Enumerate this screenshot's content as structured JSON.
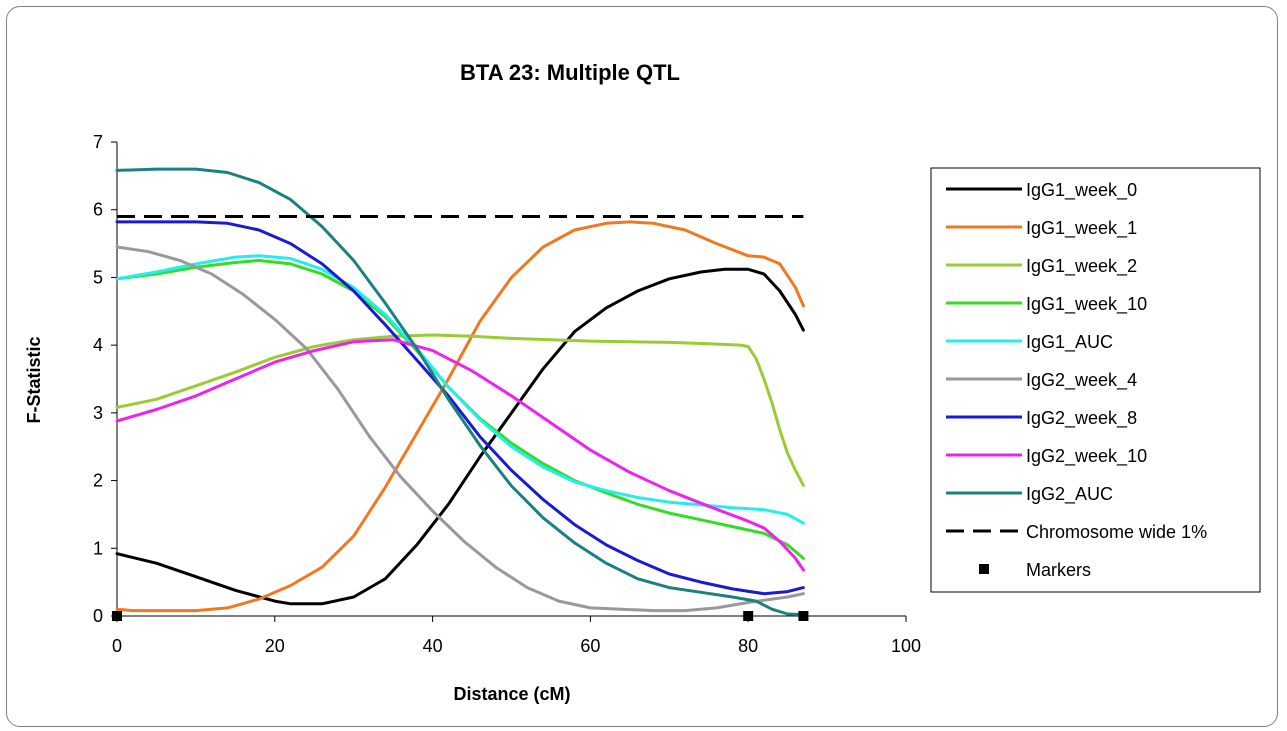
{
  "chart_data": {
    "type": "line",
    "title": "BTA 23: Multiple QTL",
    "xlabel": "Distance (cM)",
    "ylabel": "F-Statistic",
    "xlim": [
      0,
      100
    ],
    "ylim": [
      0,
      7
    ],
    "x_ticks": [
      "0",
      "20",
      "40",
      "60",
      "80",
      "100"
    ],
    "y_ticks": [
      "0",
      "1",
      "2",
      "3",
      "4",
      "5",
      "6",
      "7"
    ],
    "legend_position": "right",
    "series": [
      {
        "name": "IgG1_week_0",
        "color": "#000000",
        "points": [
          [
            0,
            0.92
          ],
          [
            5,
            0.78
          ],
          [
            10,
            0.58
          ],
          [
            15,
            0.38
          ],
          [
            20,
            0.22
          ],
          [
            22,
            0.18
          ],
          [
            26,
            0.18
          ],
          [
            30,
            0.28
          ],
          [
            34,
            0.55
          ],
          [
            38,
            1.05
          ],
          [
            42,
            1.65
          ],
          [
            46,
            2.35
          ],
          [
            50,
            3.0
          ],
          [
            54,
            3.65
          ],
          [
            58,
            4.2
          ],
          [
            62,
            4.55
          ],
          [
            66,
            4.8
          ],
          [
            70,
            4.98
          ],
          [
            74,
            5.08
          ],
          [
            77,
            5.12
          ],
          [
            80,
            5.12
          ],
          [
            82,
            5.05
          ],
          [
            84,
            4.8
          ],
          [
            86,
            4.45
          ],
          [
            87,
            4.22
          ]
        ]
      },
      {
        "name": "IgG1_week_1",
        "color": "#f07820",
        "points": [
          [
            0,
            0.1
          ],
          [
            2,
            0.08
          ],
          [
            10,
            0.08
          ],
          [
            14,
            0.12
          ],
          [
            18,
            0.25
          ],
          [
            22,
            0.45
          ],
          [
            26,
            0.72
          ],
          [
            30,
            1.18
          ],
          [
            34,
            1.9
          ],
          [
            38,
            2.7
          ],
          [
            42,
            3.5
          ],
          [
            46,
            4.35
          ],
          [
            50,
            5.0
          ],
          [
            54,
            5.45
          ],
          [
            58,
            5.7
          ],
          [
            62,
            5.8
          ],
          [
            65,
            5.82
          ],
          [
            68,
            5.8
          ],
          [
            72,
            5.7
          ],
          [
            76,
            5.5
          ],
          [
            80,
            5.32
          ],
          [
            82,
            5.3
          ],
          [
            84,
            5.2
          ],
          [
            86,
            4.85
          ],
          [
            87,
            4.58
          ]
        ]
      },
      {
        "name": "IgG1_week_2",
        "color": "#99cc33",
        "points": [
          [
            0,
            3.08
          ],
          [
            5,
            3.2
          ],
          [
            10,
            3.4
          ],
          [
            15,
            3.6
          ],
          [
            20,
            3.82
          ],
          [
            25,
            3.98
          ],
          [
            30,
            4.08
          ],
          [
            35,
            4.13
          ],
          [
            40,
            4.15
          ],
          [
            45,
            4.13
          ],
          [
            50,
            4.1
          ],
          [
            55,
            4.08
          ],
          [
            60,
            4.06
          ],
          [
            65,
            4.05
          ],
          [
            70,
            4.04
          ],
          [
            75,
            4.02
          ],
          [
            79,
            4.0
          ],
          [
            80,
            3.98
          ],
          [
            81,
            3.8
          ],
          [
            82,
            3.5
          ],
          [
            83,
            3.15
          ],
          [
            84,
            2.75
          ],
          [
            85,
            2.4
          ],
          [
            86,
            2.15
          ],
          [
            87,
            1.93
          ]
        ]
      },
      {
        "name": "IgG1_week_10",
        "color": "#33dd22",
        "points": [
          [
            0,
            4.98
          ],
          [
            5,
            5.05
          ],
          [
            10,
            5.15
          ],
          [
            15,
            5.22
          ],
          [
            18,
            5.25
          ],
          [
            22,
            5.2
          ],
          [
            26,
            5.05
          ],
          [
            30,
            4.8
          ],
          [
            34,
            4.42
          ],
          [
            38,
            3.92
          ],
          [
            42,
            3.38
          ],
          [
            46,
            2.92
          ],
          [
            50,
            2.55
          ],
          [
            54,
            2.25
          ],
          [
            58,
            2.0
          ],
          [
            62,
            1.82
          ],
          [
            66,
            1.65
          ],
          [
            70,
            1.52
          ],
          [
            74,
            1.42
          ],
          [
            78,
            1.32
          ],
          [
            82,
            1.22
          ],
          [
            85,
            1.05
          ],
          [
            87,
            0.85
          ]
        ]
      },
      {
        "name": "IgG1_AUC",
        "color": "#22eeee",
        "points": [
          [
            0,
            4.98
          ],
          [
            5,
            5.08
          ],
          [
            10,
            5.2
          ],
          [
            15,
            5.3
          ],
          [
            18,
            5.32
          ],
          [
            22,
            5.28
          ],
          [
            26,
            5.12
          ],
          [
            30,
            4.85
          ],
          [
            34,
            4.45
          ],
          [
            38,
            3.95
          ],
          [
            42,
            3.38
          ],
          [
            46,
            2.9
          ],
          [
            50,
            2.5
          ],
          [
            54,
            2.2
          ],
          [
            58,
            1.98
          ],
          [
            62,
            1.85
          ],
          [
            66,
            1.75
          ],
          [
            70,
            1.68
          ],
          [
            74,
            1.64
          ],
          [
            78,
            1.6
          ],
          [
            82,
            1.57
          ],
          [
            85,
            1.5
          ],
          [
            87,
            1.37
          ]
        ]
      },
      {
        "name": "IgG2_week_4",
        "color": "#999999",
        "points": [
          [
            0,
            5.45
          ],
          [
            4,
            5.38
          ],
          [
            8,
            5.25
          ],
          [
            12,
            5.05
          ],
          [
            16,
            4.75
          ],
          [
            20,
            4.38
          ],
          [
            24,
            3.95
          ],
          [
            28,
            3.35
          ],
          [
            32,
            2.65
          ],
          [
            36,
            2.05
          ],
          [
            40,
            1.55
          ],
          [
            44,
            1.1
          ],
          [
            48,
            0.72
          ],
          [
            52,
            0.42
          ],
          [
            56,
            0.22
          ],
          [
            60,
            0.12
          ],
          [
            64,
            0.1
          ],
          [
            68,
            0.08
          ],
          [
            72,
            0.08
          ],
          [
            76,
            0.12
          ],
          [
            80,
            0.2
          ],
          [
            83,
            0.25
          ],
          [
            85,
            0.28
          ],
          [
            87,
            0.33
          ]
        ]
      },
      {
        "name": "IgG2_week_8",
        "color": "#1a1ad6",
        "points": [
          [
            0,
            5.82
          ],
          [
            10,
            5.82
          ],
          [
            14,
            5.8
          ],
          [
            18,
            5.7
          ],
          [
            22,
            5.5
          ],
          [
            26,
            5.2
          ],
          [
            30,
            4.8
          ],
          [
            34,
            4.3
          ],
          [
            38,
            3.78
          ],
          [
            42,
            3.25
          ],
          [
            46,
            2.65
          ],
          [
            50,
            2.15
          ],
          [
            54,
            1.72
          ],
          [
            58,
            1.35
          ],
          [
            62,
            1.05
          ],
          [
            66,
            0.82
          ],
          [
            70,
            0.62
          ],
          [
            74,
            0.5
          ],
          [
            78,
            0.4
          ],
          [
            82,
            0.33
          ],
          [
            85,
            0.36
          ],
          [
            87,
            0.42
          ]
        ]
      },
      {
        "name": "IgG2_week_10",
        "color": "#ee22ee",
        "points": [
          [
            0,
            2.88
          ],
          [
            5,
            3.05
          ],
          [
            10,
            3.25
          ],
          [
            15,
            3.5
          ],
          [
            20,
            3.75
          ],
          [
            25,
            3.92
          ],
          [
            30,
            4.05
          ],
          [
            35,
            4.08
          ],
          [
            40,
            3.92
          ],
          [
            45,
            3.62
          ],
          [
            50,
            3.25
          ],
          [
            55,
            2.85
          ],
          [
            60,
            2.45
          ],
          [
            65,
            2.12
          ],
          [
            70,
            1.85
          ],
          [
            75,
            1.62
          ],
          [
            80,
            1.4
          ],
          [
            82,
            1.3
          ],
          [
            84,
            1.1
          ],
          [
            86,
            0.85
          ],
          [
            87,
            0.68
          ]
        ]
      },
      {
        "name": "IgG2_AUC",
        "color": "#1a8080",
        "points": [
          [
            0,
            6.58
          ],
          [
            5,
            6.6
          ],
          [
            10,
            6.6
          ],
          [
            14,
            6.55
          ],
          [
            18,
            6.4
          ],
          [
            22,
            6.15
          ],
          [
            26,
            5.75
          ],
          [
            30,
            5.25
          ],
          [
            34,
            4.62
          ],
          [
            38,
            3.95
          ],
          [
            42,
            3.2
          ],
          [
            46,
            2.52
          ],
          [
            50,
            1.92
          ],
          [
            54,
            1.45
          ],
          [
            58,
            1.08
          ],
          [
            62,
            0.78
          ],
          [
            66,
            0.55
          ],
          [
            70,
            0.42
          ],
          [
            74,
            0.35
          ],
          [
            78,
            0.28
          ],
          [
            81,
            0.22
          ],
          [
            83,
            0.1
          ],
          [
            85,
            0.03
          ],
          [
            87,
            0.02
          ]
        ]
      }
    ],
    "threshold": {
      "name": "Chromosome wide 1%",
      "value": 5.9,
      "x_range": [
        0,
        87
      ],
      "color": "#000000"
    },
    "markers": {
      "name": "Markers",
      "x": [
        0,
        80,
        87
      ],
      "y": 0
    }
  }
}
